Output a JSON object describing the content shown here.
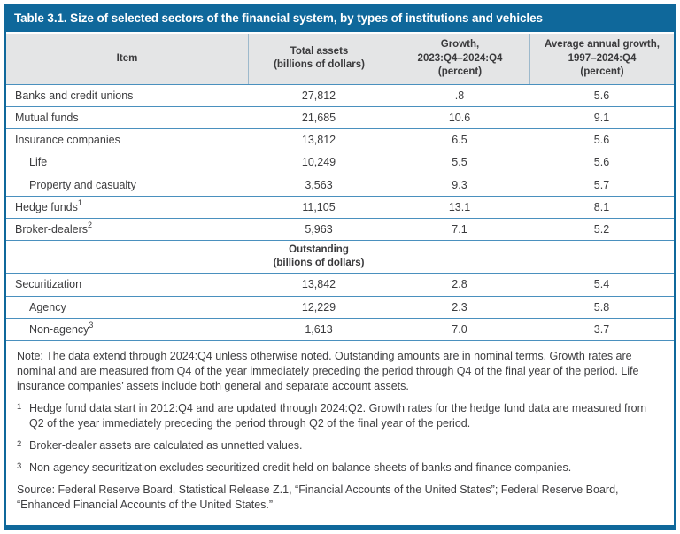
{
  "colors": {
    "accent_blue": "#0F689B",
    "row_line_blue": "#4A90BE",
    "header_bg": "#E4E5E6"
  },
  "table": {
    "title": "Table 3.1. Size of selected sectors of the financial system, by types of institutions and vehicles",
    "columns": {
      "item": "Item",
      "total_assets": "Total assets\n(billions of dollars)",
      "growth": "Growth,\n2023:Q4–2024:Q4\n(percent)",
      "avg_growth": "Average annual growth,\n1997–2024:Q4\n(percent)"
    },
    "rows": [
      {
        "label": "Banks and credit unions",
        "sup": "",
        "total_assets": "27,812",
        "growth": ".8",
        "avg_growth": "5.6"
      },
      {
        "label": "Mutual funds",
        "sup": "",
        "total_assets": "21,685",
        "growth": "10.6",
        "avg_growth": "9.1"
      },
      {
        "label": "Insurance companies",
        "sup": "",
        "total_assets": "13,812",
        "growth": "6.5",
        "avg_growth": "5.6"
      },
      {
        "label": "Life",
        "sup": "",
        "total_assets": "10,249",
        "growth": "5.5",
        "avg_growth": "5.6"
      },
      {
        "label": "Property and casualty",
        "sup": "",
        "total_assets": "3,563",
        "growth": "9.3",
        "avg_growth": "5.7"
      },
      {
        "label": "Hedge funds",
        "sup": "1",
        "total_assets": "11,105",
        "growth": "13.1",
        "avg_growth": "8.1"
      },
      {
        "label": "Broker-dealers",
        "sup": "2",
        "total_assets": "5,963",
        "growth": "7.1",
        "avg_growth": "5.2"
      },
      {
        "label": "Securitization",
        "sup": "",
        "total_assets": "13,842",
        "growth": "2.8",
        "avg_growth": "5.4"
      },
      {
        "label": "Agency",
        "sup": "",
        "total_assets": "12,229",
        "growth": "2.3",
        "avg_growth": "5.8"
      },
      {
        "label": "Non-agency",
        "sup": "3",
        "total_assets": "1,613",
        "growth": "7.0",
        "avg_growth": "3.7"
      }
    ],
    "section_header": "Outstanding\n(billions of dollars)"
  },
  "notes": {
    "note": "Note: The data extend through 2024:Q4 unless otherwise noted. Outstanding amounts are in nominal terms. Growth rates are nominal and are measured from Q4 of the year immediately preceding the period through Q4 of the final year of the period. Life insurance companies’ assets include both general and separate account assets.",
    "footnotes": [
      {
        "marker": "1",
        "text": "Hedge fund data start in 2012:Q4 and are updated through 2024:Q2. Growth rates for the hedge fund data are measured from Q2 of the year immediately preceding the period through Q2 of the final year of the period."
      },
      {
        "marker": "2",
        "text": "Broker-dealer assets are calculated as unnetted values."
      },
      {
        "marker": "3",
        "text": "Non-agency securitization excludes securitized credit held on balance sheets of banks and finance companies."
      }
    ],
    "source": "Source: Federal Reserve Board, Statistical Release Z.1, “Financial Accounts of the United States”; Federal Reserve Board, “Enhanced Financial Accounts of the United States.”"
  }
}
